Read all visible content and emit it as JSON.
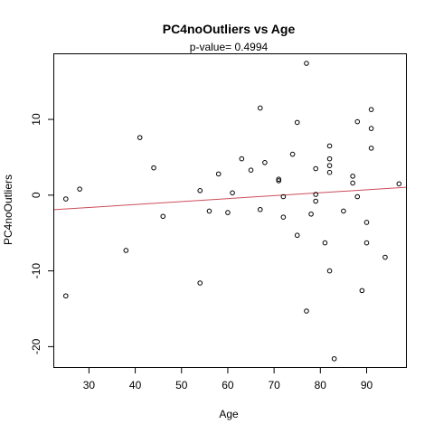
{
  "chart_data": {
    "type": "scatter",
    "title": "PC4noOutliers  vs  Age",
    "subtitle": "p-value= 0.4994",
    "xlabel": "Age",
    "ylabel": "PC4noOutliers",
    "xlim": [
      22.5,
      98.5
    ],
    "ylim": [
      -22.7,
      18.6
    ],
    "xticks": [
      30,
      40,
      50,
      60,
      70,
      80,
      90
    ],
    "xtick_labels": [
      "30",
      "40",
      "50",
      "60",
      "70",
      "80",
      "90"
    ],
    "yticks": [
      10,
      0,
      -10,
      -20
    ],
    "ytick_labels": [
      "10",
      "0",
      "-10",
      "-20"
    ],
    "grid": false,
    "legend": "none",
    "point_color": "#000000",
    "line_color": "#cc4c5a",
    "regression": {
      "intercept": -2.8,
      "slope": 0.039
    },
    "points": [
      {
        "x": 25,
        "y": -0.5
      },
      {
        "x": 25,
        "y": -13.3
      },
      {
        "x": 28,
        "y": 0.8
      },
      {
        "x": 38,
        "y": -7.3
      },
      {
        "x": 41,
        "y": 7.6
      },
      {
        "x": 44,
        "y": 3.6
      },
      {
        "x": 46,
        "y": -2.8
      },
      {
        "x": 54,
        "y": 0.6
      },
      {
        "x": 54,
        "y": -11.6
      },
      {
        "x": 56,
        "y": -2.1
      },
      {
        "x": 58,
        "y": 2.8
      },
      {
        "x": 60,
        "y": -2.3
      },
      {
        "x": 61,
        "y": 0.3
      },
      {
        "x": 63,
        "y": 4.8
      },
      {
        "x": 65,
        "y": 3.3
      },
      {
        "x": 67,
        "y": 11.5
      },
      {
        "x": 67,
        "y": -1.9
      },
      {
        "x": 68,
        "y": 4.3
      },
      {
        "x": 71,
        "y": 2.1
      },
      {
        "x": 71,
        "y": 1.9
      },
      {
        "x": 72,
        "y": -0.2
      },
      {
        "x": 72,
        "y": -2.9
      },
      {
        "x": 74,
        "y": 5.4
      },
      {
        "x": 75,
        "y": 9.6
      },
      {
        "x": 75,
        "y": -5.3
      },
      {
        "x": 77,
        "y": 17.4
      },
      {
        "x": 77,
        "y": -15.3
      },
      {
        "x": 78,
        "y": -2.5
      },
      {
        "x": 79,
        "y": 3.5
      },
      {
        "x": 79,
        "y": 0.1
      },
      {
        "x": 79,
        "y": -0.8
      },
      {
        "x": 81,
        "y": -6.3
      },
      {
        "x": 82,
        "y": 6.5
      },
      {
        "x": 82,
        "y": 4.8
      },
      {
        "x": 82,
        "y": 3.9
      },
      {
        "x": 82,
        "y": 3.0
      },
      {
        "x": 82,
        "y": -10.0
      },
      {
        "x": 83,
        "y": -21.6
      },
      {
        "x": 85,
        "y": -2.1
      },
      {
        "x": 87,
        "y": 2.5
      },
      {
        "x": 87,
        "y": 1.6
      },
      {
        "x": 88,
        "y": 9.7
      },
      {
        "x": 88,
        "y": -0.2
      },
      {
        "x": 89,
        "y": -12.6
      },
      {
        "x": 90,
        "y": -3.6
      },
      {
        "x": 90,
        "y": -6.3
      },
      {
        "x": 91,
        "y": 11.3
      },
      {
        "x": 91,
        "y": 8.8
      },
      {
        "x": 91,
        "y": 6.2
      },
      {
        "x": 94,
        "y": -8.2
      },
      {
        "x": 97,
        "y": 1.5
      }
    ]
  }
}
